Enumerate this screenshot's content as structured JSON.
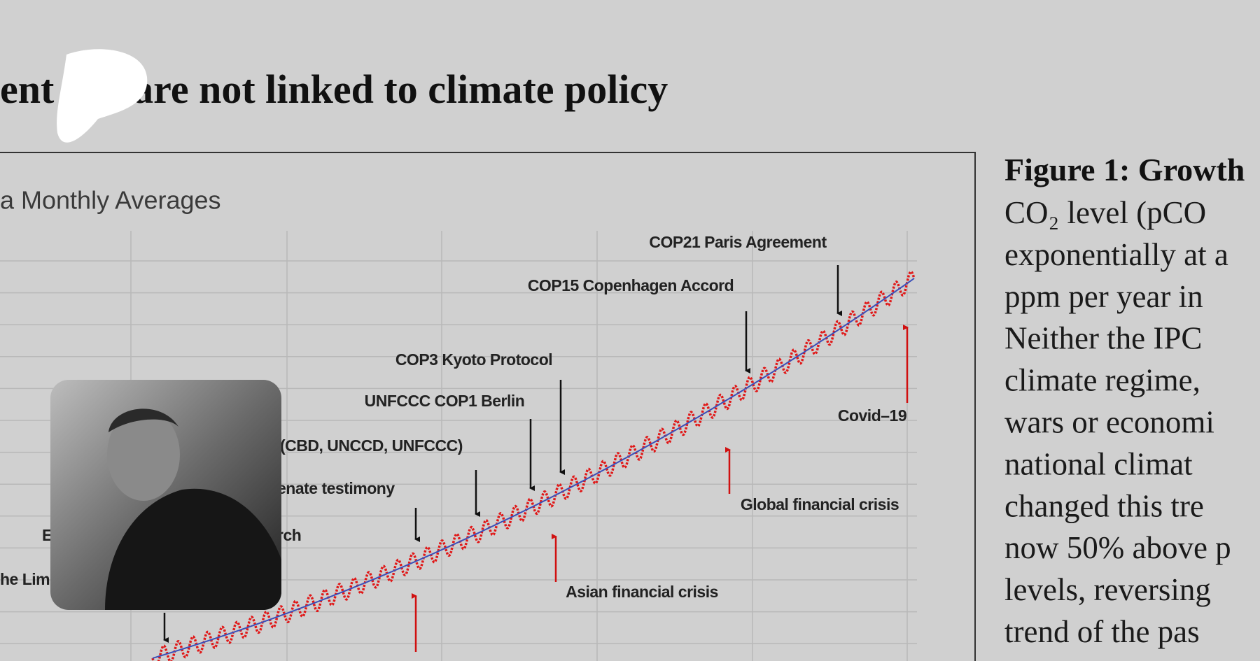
{
  "header": {
    "title": "ent  ons are not linked to climate policy"
  },
  "chart_image": {
    "title": "a Monthly Averages",
    "annotations": [
      "COP21 Paris Agreement",
      "COP15 Copenhagen Accord",
      "COP3 Kyoto Protocol",
      "UNFCCC COP1 Berlin",
      "(CBD, UNCCD, UNFCCC)",
      "enate testimony",
      "rch",
      "E",
      "he Lim",
      "Covid–19",
      "Global financial crisis",
      "Asian financial crisis"
    ]
  },
  "caption": {
    "heading": "Figure 1: Growth",
    "lines": [
      "CO₂ level (pCO",
      "exponentially at a",
      "ppm per year in",
      "Neither the IPC",
      "climate regime,",
      "wars or economi",
      "national climat",
      "changed this tre",
      "now 50% above p",
      "levels, reversing",
      "trend of the pas"
    ]
  }
}
